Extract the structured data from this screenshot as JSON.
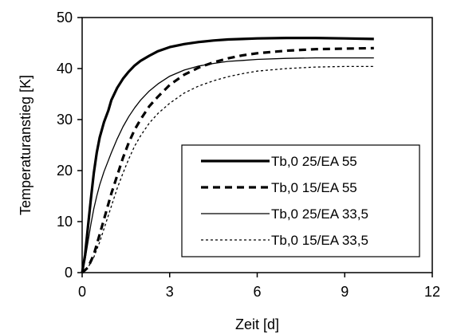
{
  "chart_data": {
    "type": "line",
    "xlabel": "Zeit [d]",
    "ylabel": "Temperaturanstieg [K]",
    "xlim": [
      0,
      12
    ],
    "ylim": [
      0,
      50
    ],
    "xticks": [
      0,
      3,
      6,
      9,
      12
    ],
    "yticks": [
      0,
      10,
      20,
      30,
      40,
      50
    ],
    "grid": false,
    "legend_position": "bottom-right",
    "series": [
      {
        "name": "Tb,0 25/EA 55",
        "style": "solid-thick",
        "color": "#000000",
        "x": [
          0,
          0.1,
          0.2,
          0.3,
          0.4,
          0.5,
          0.6,
          0.75,
          0.9,
          1.0,
          1.2,
          1.4,
          1.6,
          1.8,
          2.0,
          2.3,
          2.6,
          3.0,
          3.5,
          4.0,
          4.5,
          5.0,
          5.5,
          6.0,
          7.0,
          8.0,
          9.0,
          10.0
        ],
        "y": [
          0,
          3.5,
          9,
          14.5,
          19.5,
          23.5,
          26.5,
          29.5,
          31.8,
          33.8,
          36.2,
          38.0,
          39.4,
          40.6,
          41.5,
          42.5,
          43.4,
          44.2,
          44.8,
          45.2,
          45.5,
          45.7,
          45.8,
          45.9,
          46.0,
          46.0,
          45.9,
          45.8
        ]
      },
      {
        "name": "Tb,0 15/EA 55",
        "style": "dashed-thick",
        "color": "#000000",
        "x": [
          0,
          0.2,
          0.4,
          0.6,
          0.8,
          1.0,
          1.2,
          1.4,
          1.6,
          1.8,
          2.0,
          2.3,
          2.6,
          3.0,
          3.5,
          4.0,
          4.5,
          5.0,
          5.5,
          6.0,
          7.0,
          8.0,
          9.0,
          10.0
        ],
        "y": [
          0,
          1.0,
          3.5,
          7.5,
          11.5,
          15.5,
          19.0,
          22.5,
          25.5,
          28.0,
          30.0,
          32.6,
          34.5,
          36.8,
          38.8,
          40.2,
          41.2,
          42.0,
          42.6,
          43.0,
          43.5,
          43.8,
          43.9,
          44.0
        ]
      },
      {
        "name": "Tb,0 25/EA 33,5",
        "style": "solid-thin",
        "color": "#000000",
        "x": [
          0,
          0.1,
          0.2,
          0.3,
          0.4,
          0.5,
          0.6,
          0.75,
          0.9,
          1.0,
          1.2,
          1.4,
          1.6,
          1.8,
          2.0,
          2.3,
          2.6,
          3.0,
          3.5,
          4.0,
          4.5,
          5.0,
          5.5,
          6.0,
          7.0,
          8.0,
          9.0,
          10.0
        ],
        "y": [
          0,
          2.5,
          6.0,
          9.5,
          12.5,
          15.0,
          17.2,
          19.8,
          22.0,
          23.5,
          26.2,
          28.6,
          30.6,
          32.3,
          33.8,
          35.6,
          37.0,
          38.5,
          39.7,
          40.5,
          41.0,
          41.4,
          41.6,
          41.8,
          42.0,
          42.1,
          42.1,
          42.1
        ]
      },
      {
        "name": "Tb,0 15/EA 33,5",
        "style": "dotted-thin",
        "color": "#000000",
        "x": [
          0,
          0.2,
          0.4,
          0.6,
          0.8,
          1.0,
          1.2,
          1.4,
          1.6,
          1.8,
          2.0,
          2.3,
          2.6,
          3.0,
          3.5,
          4.0,
          4.5,
          5.0,
          5.5,
          6.0,
          7.0,
          8.0,
          9.0,
          10.0
        ],
        "y": [
          0,
          1.0,
          3.0,
          6.0,
          9.5,
          13.0,
          16.5,
          19.5,
          22.3,
          24.8,
          26.8,
          29.3,
          31.2,
          33.2,
          35.2,
          36.6,
          37.6,
          38.4,
          39.0,
          39.5,
          40.0,
          40.3,
          40.4,
          40.4
        ]
      }
    ]
  }
}
